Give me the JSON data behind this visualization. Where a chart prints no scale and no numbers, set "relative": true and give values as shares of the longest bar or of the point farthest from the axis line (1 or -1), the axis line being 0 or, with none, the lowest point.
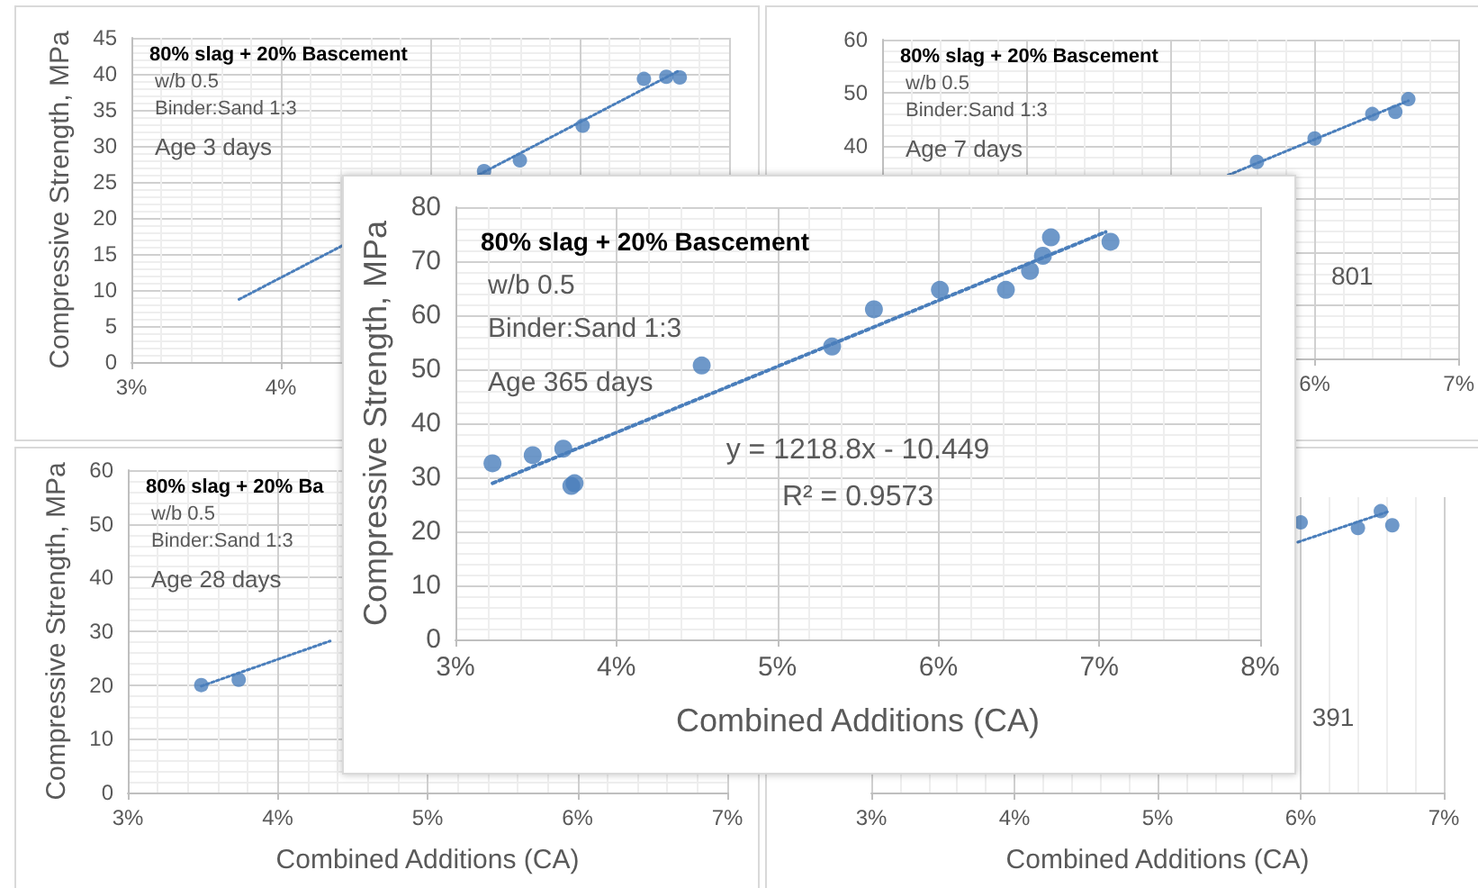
{
  "chart_data": [
    {
      "type": "scatter",
      "ylabel": "Compressive Strength, MPa",
      "annotations": [
        "80% slag + 20% Bascement",
        "w/b 0.5",
        "Binder:Sand 1:3",
        "Age 3 days"
      ],
      "xlim": [
        3,
        7
      ],
      "xticks": [
        {
          "value": 3,
          "label": "3%"
        },
        {
          "value": 4,
          "label": "4%"
        }
      ],
      "ylim": [
        0,
        45
      ],
      "yticks": [
        0,
        5,
        10,
        15,
        20,
        25,
        30,
        35,
        40,
        45
      ],
      "grid": true,
      "marker": "circle",
      "series": [
        {
          "color": "#4a7ebb",
          "x": [
            5.36,
            5.6,
            6.02,
            6.43,
            6.58,
            6.67
          ],
          "values": [
            26.5,
            28,
            32.8,
            39.3,
            39.6,
            39.5
          ]
        },
        {
          "type": "line",
          "marker": "none",
          "line_style": "dotted",
          "color": "#4a7ebb",
          "x": [
            3.72,
            6.67
          ],
          "values": [
            8.7,
            40.5
          ]
        }
      ]
    },
    {
      "type": "scatter",
      "annotations": [
        "80% slag + 20% Bascement",
        "w/b 0.5",
        "Binder:Sand 1:3",
        "Age 7 days",
        "801"
      ],
      "xlim": [
        3,
        7
      ],
      "xticks": [
        {
          "value": 6,
          "label": "6%"
        },
        {
          "value": 7,
          "label": "7%"
        }
      ],
      "ylim": [
        0,
        60
      ],
      "yticks": [
        40,
        50,
        60
      ],
      "grid": true,
      "marker": "circle",
      "series": [
        {
          "color": "#4a7ebb",
          "x": [
            5.6,
            6.0,
            6.4,
            6.56,
            6.65
          ],
          "values": [
            37,
            41.4,
            46,
            46.4,
            48.8
          ]
        },
        {
          "type": "line",
          "marker": "none",
          "line_style": "dotted",
          "color": "#4a7ebb",
          "x": [
            5.4,
            6.65
          ],
          "values": [
            34.5,
            48.5
          ]
        }
      ]
    },
    {
      "type": "scatter",
      "ylabel": "Compressive Strength, MPa",
      "xlabel": "Combined Additions (CA)",
      "annotations": [
        "80% slag + 20% Ba",
        "w/b 0.5",
        "Binder:Sand 1:3",
        "Age 28 days"
      ],
      "xlim": [
        3,
        7
      ],
      "xticks": [
        {
          "value": 3,
          "label": "3%"
        },
        {
          "value": 4,
          "label": "4%"
        },
        {
          "value": 5,
          "label": "5%"
        },
        {
          "value": 6,
          "label": "6%"
        },
        {
          "value": 7,
          "label": "7%"
        }
      ],
      "ylim": [
        0,
        60
      ],
      "yticks": [
        0,
        10,
        20,
        30,
        40,
        50,
        60
      ],
      "grid": true,
      "marker": "circle",
      "series": [
        {
          "color": "#4a7ebb",
          "x": [
            3.49,
            3.74
          ],
          "values": [
            20,
            21
          ]
        },
        {
          "type": "line",
          "marker": "none",
          "line_style": "dotted",
          "color": "#4a7ebb",
          "x": [
            3.49,
            4.35
          ],
          "values": [
            19.8,
            28.2
          ]
        }
      ]
    },
    {
      "type": "scatter",
      "xlabel": "Combined Additions (CA)",
      "annotations": [
        "391"
      ],
      "xlim": [
        3,
        7
      ],
      "xticks": [
        {
          "value": 3,
          "label": "3%"
        },
        {
          "value": 4,
          "label": "4%"
        },
        {
          "value": 5,
          "label": "5%"
        },
        {
          "value": 6,
          "label": "6%"
        },
        {
          "value": 7,
          "label": "7%"
        }
      ],
      "relative": true,
      "grid": true,
      "marker": "circle",
      "series": [
        {
          "color": "#4a7ebb",
          "x": [
            6.0,
            6.4,
            6.56,
            6.64
          ],
          "values": [
            0.96,
            0.94,
            1,
            0.95
          ]
        },
        {
          "type": "line",
          "marker": "none",
          "line_style": "dotted",
          "color": "#4a7ebb",
          "x": [
            5.98,
            6.62
          ],
          "values": [
            0.89,
            1
          ]
        }
      ]
    },
    {
      "type": "scatter",
      "xlabel": "Combined Additions (CA)",
      "ylabel": "Compressive Strength, MPa",
      "annotations": [
        "80% slag + 20% Bascement",
        "w/b 0.5",
        "Binder:Sand 1:3",
        "Age 365 days",
        "y = 1218.8x - 10.449",
        "R² = 0.9573"
      ],
      "xlim": [
        3,
        8
      ],
      "xticks": [
        {
          "value": 3,
          "label": "3%"
        },
        {
          "value": 4,
          "label": "4%"
        },
        {
          "value": 5,
          "label": "5%"
        },
        {
          "value": 6,
          "label": "6%"
        },
        {
          "value": 7,
          "label": "7%"
        },
        {
          "value": 8,
          "label": "8%"
        }
      ],
      "ylim": [
        0,
        80
      ],
      "yticks": [
        0,
        10,
        20,
        30,
        40,
        50,
        60,
        70,
        80
      ],
      "grid": true,
      "marker": "circle",
      "series": [
        {
          "color": "#4a7ebb",
          "x": [
            3.23,
            3.48,
            3.67,
            3.72,
            3.74,
            4.53,
            5.34,
            5.6,
            6.01,
            6.42,
            6.57,
            6.65,
            6.7,
            7.07
          ],
          "values": [
            32.6,
            34.1,
            35.3,
            28.4,
            28.9,
            50.7,
            54.2,
            61.1,
            64.7,
            64.7,
            68.2,
            71.0,
            74.4,
            73.6
          ]
        },
        {
          "type": "line",
          "marker": "none",
          "line_style": "dotted",
          "color": "#4a7ebb",
          "x": [
            3.23,
            7.04
          ],
          "values": [
            28.9,
            75.4
          ]
        }
      ]
    }
  ]
}
